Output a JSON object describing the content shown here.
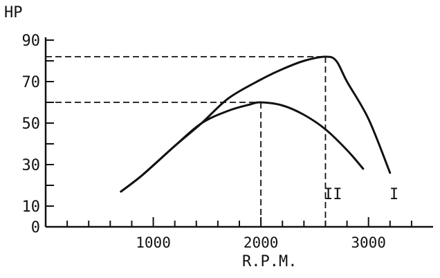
{
  "chart_data": {
    "type": "line",
    "ylabel": "HP",
    "xlabel": "R.P.M.",
    "xlim": [
      0,
      3600
    ],
    "ylim": [
      0,
      90
    ],
    "x_ticks": [
      1000,
      2000,
      3000
    ],
    "x_tick_labels": [
      "1000",
      "2000",
      "3000"
    ],
    "y_ticks": [
      0,
      10,
      30,
      50,
      70,
      90
    ],
    "y_tick_labels": [
      "0",
      "10",
      "30",
      "50",
      "70",
      "90"
    ],
    "grid": false,
    "series": [
      {
        "name": "I",
        "x": [
          700,
          900,
          1200,
          1450,
          1700,
          2000,
          2200,
          2400,
          2600,
          2700,
          2800,
          3000,
          3200
        ],
        "y": [
          17,
          25,
          39,
          50,
          62,
          71,
          76,
          80,
          82,
          80,
          70,
          52,
          26
        ]
      },
      {
        "name": "II",
        "x": [
          700,
          900,
          1200,
          1450,
          1700,
          1900,
          2000,
          2200,
          2400,
          2600,
          2800,
          2950
        ],
        "y": [
          17,
          25,
          39,
          50,
          56,
          59,
          60,
          58.5,
          54,
          47,
          37,
          28
        ]
      }
    ],
    "annotations": [
      {
        "type": "dashed-reference",
        "x": 2600,
        "y": 82
      },
      {
        "type": "dashed-reference",
        "x": 2000,
        "y": 60
      }
    ]
  }
}
